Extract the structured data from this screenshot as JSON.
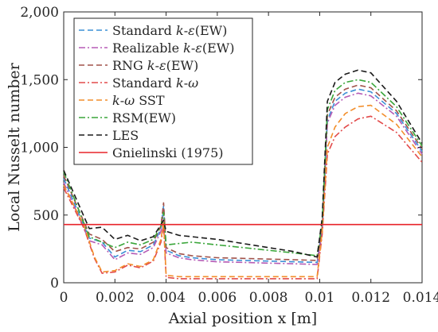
{
  "chart_data": {
    "type": "line",
    "xlabel": "Axial position x [m]",
    "ylabel": "Local Nusselt number",
    "xlim": [
      0,
      0.014
    ],
    "ylim": [
      0,
      2000
    ],
    "xticks": [
      0,
      0.002,
      0.004,
      0.006,
      0.008,
      0.01,
      0.012,
      0.014
    ],
    "xtick_labels": [
      "0",
      "0.002",
      "0.004",
      "0.006",
      "0.008",
      "0.01",
      "0.012",
      "0.014"
    ],
    "yticks": [
      0,
      500,
      1000,
      1500,
      2000
    ],
    "ytick_labels": [
      "0",
      "500",
      "1,000",
      "1,500",
      "2,000"
    ],
    "grid": false,
    "legend_position": "top-left",
    "series": [
      {
        "name": "Standard k-ε(EW)",
        "color": "#3b8fd6",
        "dash": "dashed",
        "x": [
          0,
          0.001,
          0.0015,
          0.002,
          0.0025,
          0.003,
          0.0035,
          0.0038,
          0.0039,
          0.004,
          0.0045,
          0.005,
          0.006,
          0.007,
          0.008,
          0.009,
          0.0099,
          0.0101,
          0.0103,
          0.0106,
          0.011,
          0.0115,
          0.012,
          0.013,
          0.014
        ],
        "y": [
          770,
          330,
          300,
          190,
          240,
          230,
          280,
          400,
          570,
          240,
          200,
          185,
          170,
          165,
          160,
          155,
          150,
          400,
          1200,
          1340,
          1400,
          1430,
          1410,
          1250,
          970
        ]
      },
      {
        "name": "Realizable k-ε(EW)",
        "color": "#b55bb5",
        "dash": "dashdot",
        "x": [
          0,
          0.001,
          0.0015,
          0.002,
          0.0025,
          0.003,
          0.0035,
          0.0038,
          0.0039,
          0.004,
          0.0045,
          0.005,
          0.006,
          0.007,
          0.008,
          0.009,
          0.0099,
          0.0101,
          0.0103,
          0.0106,
          0.011,
          0.0115,
          0.012,
          0.013,
          0.014
        ],
        "y": [
          740,
          310,
          280,
          170,
          220,
          210,
          260,
          380,
          540,
          220,
          185,
          170,
          155,
          150,
          145,
          140,
          135,
          380,
          1180,
          1310,
          1370,
          1400,
          1380,
          1230,
          950
        ]
      },
      {
        "name": "RNG k-ε(EW)",
        "color": "#a0524a",
        "dash": "dashed",
        "x": [
          0,
          0.001,
          0.0015,
          0.002,
          0.0025,
          0.003,
          0.0035,
          0.0038,
          0.0039,
          0.004,
          0.0045,
          0.005,
          0.006,
          0.007,
          0.008,
          0.009,
          0.0099,
          0.0101,
          0.0103,
          0.0106,
          0.011,
          0.0115,
          0.012,
          0.013,
          0.014
        ],
        "y": [
          790,
          360,
          320,
          230,
          260,
          250,
          300,
          420,
          590,
          260,
          215,
          200,
          185,
          180,
          175,
          170,
          165,
          420,
          1240,
          1370,
          1430,
          1460,
          1440,
          1270,
          990
        ]
      },
      {
        "name": "Standard k-ω",
        "color": "#e24a4a",
        "dash": "dashdot",
        "x": [
          0,
          0.0008,
          0.0012,
          0.0015,
          0.002,
          0.0025,
          0.003,
          0.0035,
          0.0038,
          0.0039,
          0.004,
          0.0045,
          0.005,
          0.006,
          0.007,
          0.008,
          0.009,
          0.0099,
          0.0101,
          0.0103,
          0.0106,
          0.011,
          0.0115,
          0.012,
          0.013,
          0.014
        ],
        "y": [
          700,
          400,
          180,
          70,
          80,
          130,
          110,
          160,
          300,
          430,
          40,
          30,
          30,
          30,
          30,
          30,
          30,
          30,
          360,
          950,
          1080,
          1150,
          1210,
          1230,
          1110,
          890
        ]
      },
      {
        "name": "k-ω SST",
        "color": "#f28e2b",
        "dash": "dashed",
        "x": [
          0,
          0.0008,
          0.0012,
          0.0015,
          0.002,
          0.0025,
          0.003,
          0.0035,
          0.0038,
          0.0039,
          0.004,
          0.0045,
          0.005,
          0.006,
          0.007,
          0.008,
          0.009,
          0.0099,
          0.0101,
          0.0103,
          0.0106,
          0.011,
          0.0115,
          0.012,
          0.013,
          0.014
        ],
        "y": [
          720,
          420,
          190,
          80,
          90,
          140,
          120,
          170,
          320,
          450,
          55,
          45,
          45,
          45,
          45,
          45,
          45,
          45,
          380,
          1000,
          1150,
          1250,
          1300,
          1310,
          1170,
          930
        ]
      },
      {
        "name": "RSM(EW)",
        "color": "#3aa63a",
        "dash": "dashdot",
        "x": [
          0,
          0.001,
          0.0015,
          0.002,
          0.0025,
          0.003,
          0.0035,
          0.0038,
          0.0039,
          0.004,
          0.0045,
          0.005,
          0.006,
          0.007,
          0.008,
          0.009,
          0.0099,
          0.0101,
          0.0103,
          0.0106,
          0.011,
          0.0115,
          0.012,
          0.013,
          0.014
        ],
        "y": [
          820,
          340,
          300,
          260,
          300,
          280,
          320,
          420,
          520,
          280,
          290,
          300,
          280,
          260,
          240,
          220,
          200,
          450,
          1280,
          1420,
          1480,
          1500,
          1480,
          1300,
          1010
        ]
      },
      {
        "name": "LES",
        "color": "#1a1a1a",
        "dash": "dashed",
        "x": [
          0,
          0.001,
          0.0015,
          0.002,
          0.0025,
          0.003,
          0.0035,
          0.0038,
          0.0039,
          0.004,
          0.0045,
          0.005,
          0.006,
          0.007,
          0.008,
          0.009,
          0.0099,
          0.0101,
          0.0103,
          0.0106,
          0.011,
          0.0115,
          0.012,
          0.013,
          0.014
        ],
        "y": [
          830,
          400,
          410,
          320,
          350,
          310,
          340,
          430,
          460,
          380,
          350,
          340,
          320,
          290,
          260,
          230,
          190,
          480,
          1340,
          1480,
          1540,
          1570,
          1550,
          1340,
          1030
        ]
      },
      {
        "name": "Gnielinski (1975)",
        "color": "#e8232a",
        "dash": "solid",
        "x": [
          0,
          0.014
        ],
        "y": [
          430,
          430
        ]
      }
    ]
  }
}
